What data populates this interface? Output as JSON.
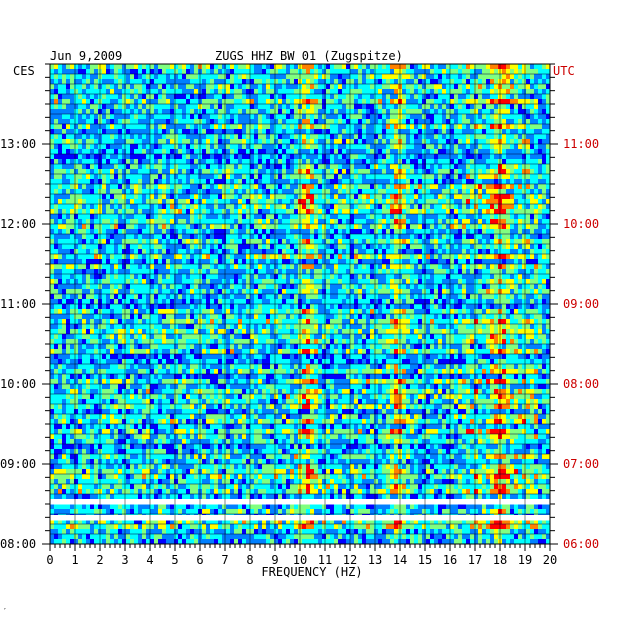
{
  "header": {
    "date": "Jun 9,2009",
    "station": "ZUGS HHZ BW 01 (Zugspitze)",
    "left_tz": "CES",
    "right_tz": "UTC"
  },
  "footer": {
    "mark": "′"
  },
  "chart_data": {
    "type": "heatmap",
    "title": "ZUGS HHZ BW 01 (Zugspitze)",
    "date": "Jun 9,2009",
    "xlabel": "FREQUENCY (HZ)",
    "xlim": [
      0,
      20
    ],
    "x_ticks": [
      "0",
      "1",
      "2",
      "3",
      "4",
      "5",
      "6",
      "7",
      "8",
      "9",
      "10",
      "11",
      "12",
      "13",
      "14",
      "15",
      "16",
      "17",
      "18",
      "19",
      "20"
    ],
    "y_axis_left": {
      "label": "CES",
      "ticks": [
        "13:00",
        "12:00",
        "11:00",
        "10:00",
        "09:00",
        "08:00"
      ]
    },
    "y_axis_right": {
      "label": "UTC",
      "ticks": [
        "11:00",
        "10:00",
        "09:00",
        "08:00",
        "07:00",
        "06:00"
      ]
    },
    "time_range_local": [
      "08:00",
      "13:50"
    ],
    "colorscale": [
      "#000080",
      "#0000ff",
      "#0080ff",
      "#00ffff",
      "#80ff80",
      "#ffff00",
      "#ff8000",
      "#ff0000"
    ],
    "grid": true,
    "data_gap_rows": 2,
    "notable_bands_hz": [
      10.3,
      13.9,
      18
    ]
  }
}
